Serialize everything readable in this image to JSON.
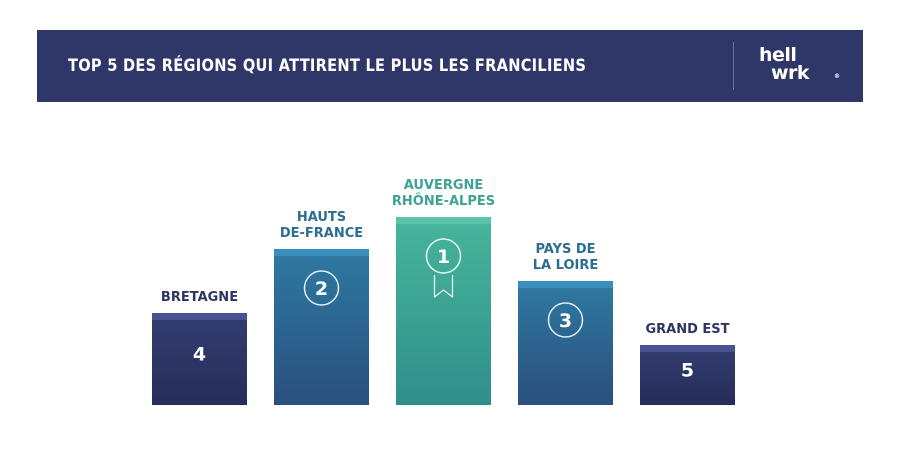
{
  "header": {
    "title": "TOP 5 DES RÉGIONS QUI ATTIRENT LE PLUS LES FRANCILIENS",
    "logo_line1": "hell",
    "logo_line2": "wrk",
    "logo_mark": "®"
  },
  "colors": {
    "header_bg": "#2f3768",
    "navy": "#2d3566",
    "teal_blue": "#2c6d94",
    "green_teal": "#3da392"
  },
  "chart_data": {
    "type": "bar",
    "title": "TOP 5 DES RÉGIONS QUI ATTIRENT LE PLUS LES FRANCILIENS",
    "categories": [
      [
        "BRETAGNE"
      ],
      [
        "HAUTS",
        "DE-FRANCE"
      ],
      [
        "AUVERGNE",
        "RHÔNE-ALPES"
      ],
      [
        "PAYS DE",
        "LA LOIRE"
      ],
      [
        "GRAND EST"
      ]
    ],
    "ranks": [
      "4",
      "2",
      "1",
      "3",
      "5"
    ],
    "podium_levels": [
      2,
      4,
      5,
      3,
      1
    ],
    "max_level": 5,
    "first_place_icon": "ribbon-medal-icon",
    "grid": false,
    "legend": "none"
  }
}
